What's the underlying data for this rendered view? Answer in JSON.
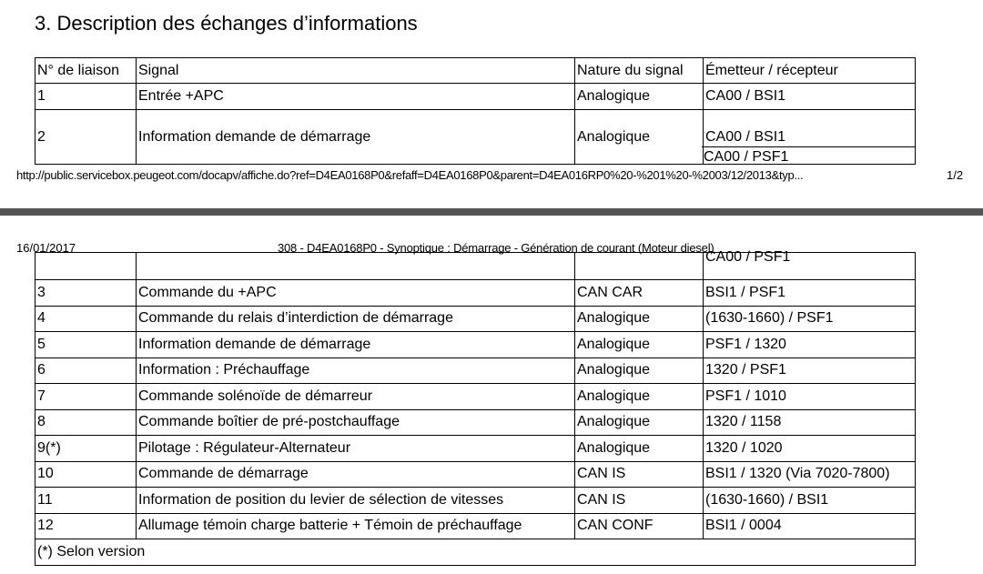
{
  "page1": {
    "section_title": "3. Description des échanges d’informations",
    "headers": [
      "N° de liaison",
      "Signal",
      "Nature du signal",
      "Émetteur / récepteur"
    ],
    "rows": [
      {
        "no": "1",
        "signal": "Entrée +APC",
        "nature": "Analogique",
        "emetteur": "CA00 / BSI1"
      },
      {
        "no": "2",
        "signal": "Information demande de démarrage",
        "nature": "Analogique",
        "emetteur": "CA00 / BSI1",
        "emetteur2": "CA00 / PSF1"
      }
    ],
    "footer_url": "http://public.servicebox.peugeot.com/docapv/affiche.do?ref=D4EA0168P0&refaff=D4EA0168P0&parent=D4EA016RP0%20-%201%20-%2003/12/2013&typ...",
    "page_number": "1/2"
  },
  "page2": {
    "date": "16/01/2017",
    "doc_title": "308 - D4EA0168P0 - Synoptique : Démarrage - Génération de courant (Moteur diesel)",
    "continued_cell": "CA00 / PSF1",
    "rows": [
      {
        "no": "3",
        "signal": "Commande du +APC",
        "nature": "CAN CAR",
        "emetteur": "BSI1 / PSF1"
      },
      {
        "no": "4",
        "signal": "Commande du relais d’interdiction de démarrage",
        "nature": "Analogique",
        "emetteur": "(1630-1660) / PSF1"
      },
      {
        "no": "5",
        "signal": "Information demande de démarrage",
        "nature": "Analogique",
        "emetteur": "PSF1 / 1320"
      },
      {
        "no": "6",
        "signal": "Information : Préchauffage",
        "nature": "Analogique",
        "emetteur": "1320 / PSF1"
      },
      {
        "no": "7",
        "signal": "Commande solénoïde de démarreur",
        "nature": "Analogique",
        "emetteur": "PSF1 / 1010"
      },
      {
        "no": "8",
        "signal": "Commande boîtier de pré-postchauffage",
        "nature": "Analogique",
        "emetteur": "1320 / 1158"
      },
      {
        "no": "9(*)",
        "signal": "Pilotage : Régulateur-Alternateur",
        "nature": "Analogique",
        "emetteur": "1320 / 1020"
      },
      {
        "no": "10",
        "signal": "Commande de démarrage",
        "nature": "CAN IS",
        "emetteur": "BSI1 / 1320 (Via 7020-7800)"
      },
      {
        "no": "11",
        "signal": "Information de position du levier de sélection de vitesses",
        "nature": "CAN IS",
        "emetteur": "(1630-1660) / BSI1"
      },
      {
        "no": "12",
        "signal": "Allumage témoin charge batterie + Témoin de préchauffage",
        "nature": "CAN CONF",
        "emetteur": "BSI1 / 0004"
      }
    ],
    "footnote": "(*) Selon version"
  }
}
